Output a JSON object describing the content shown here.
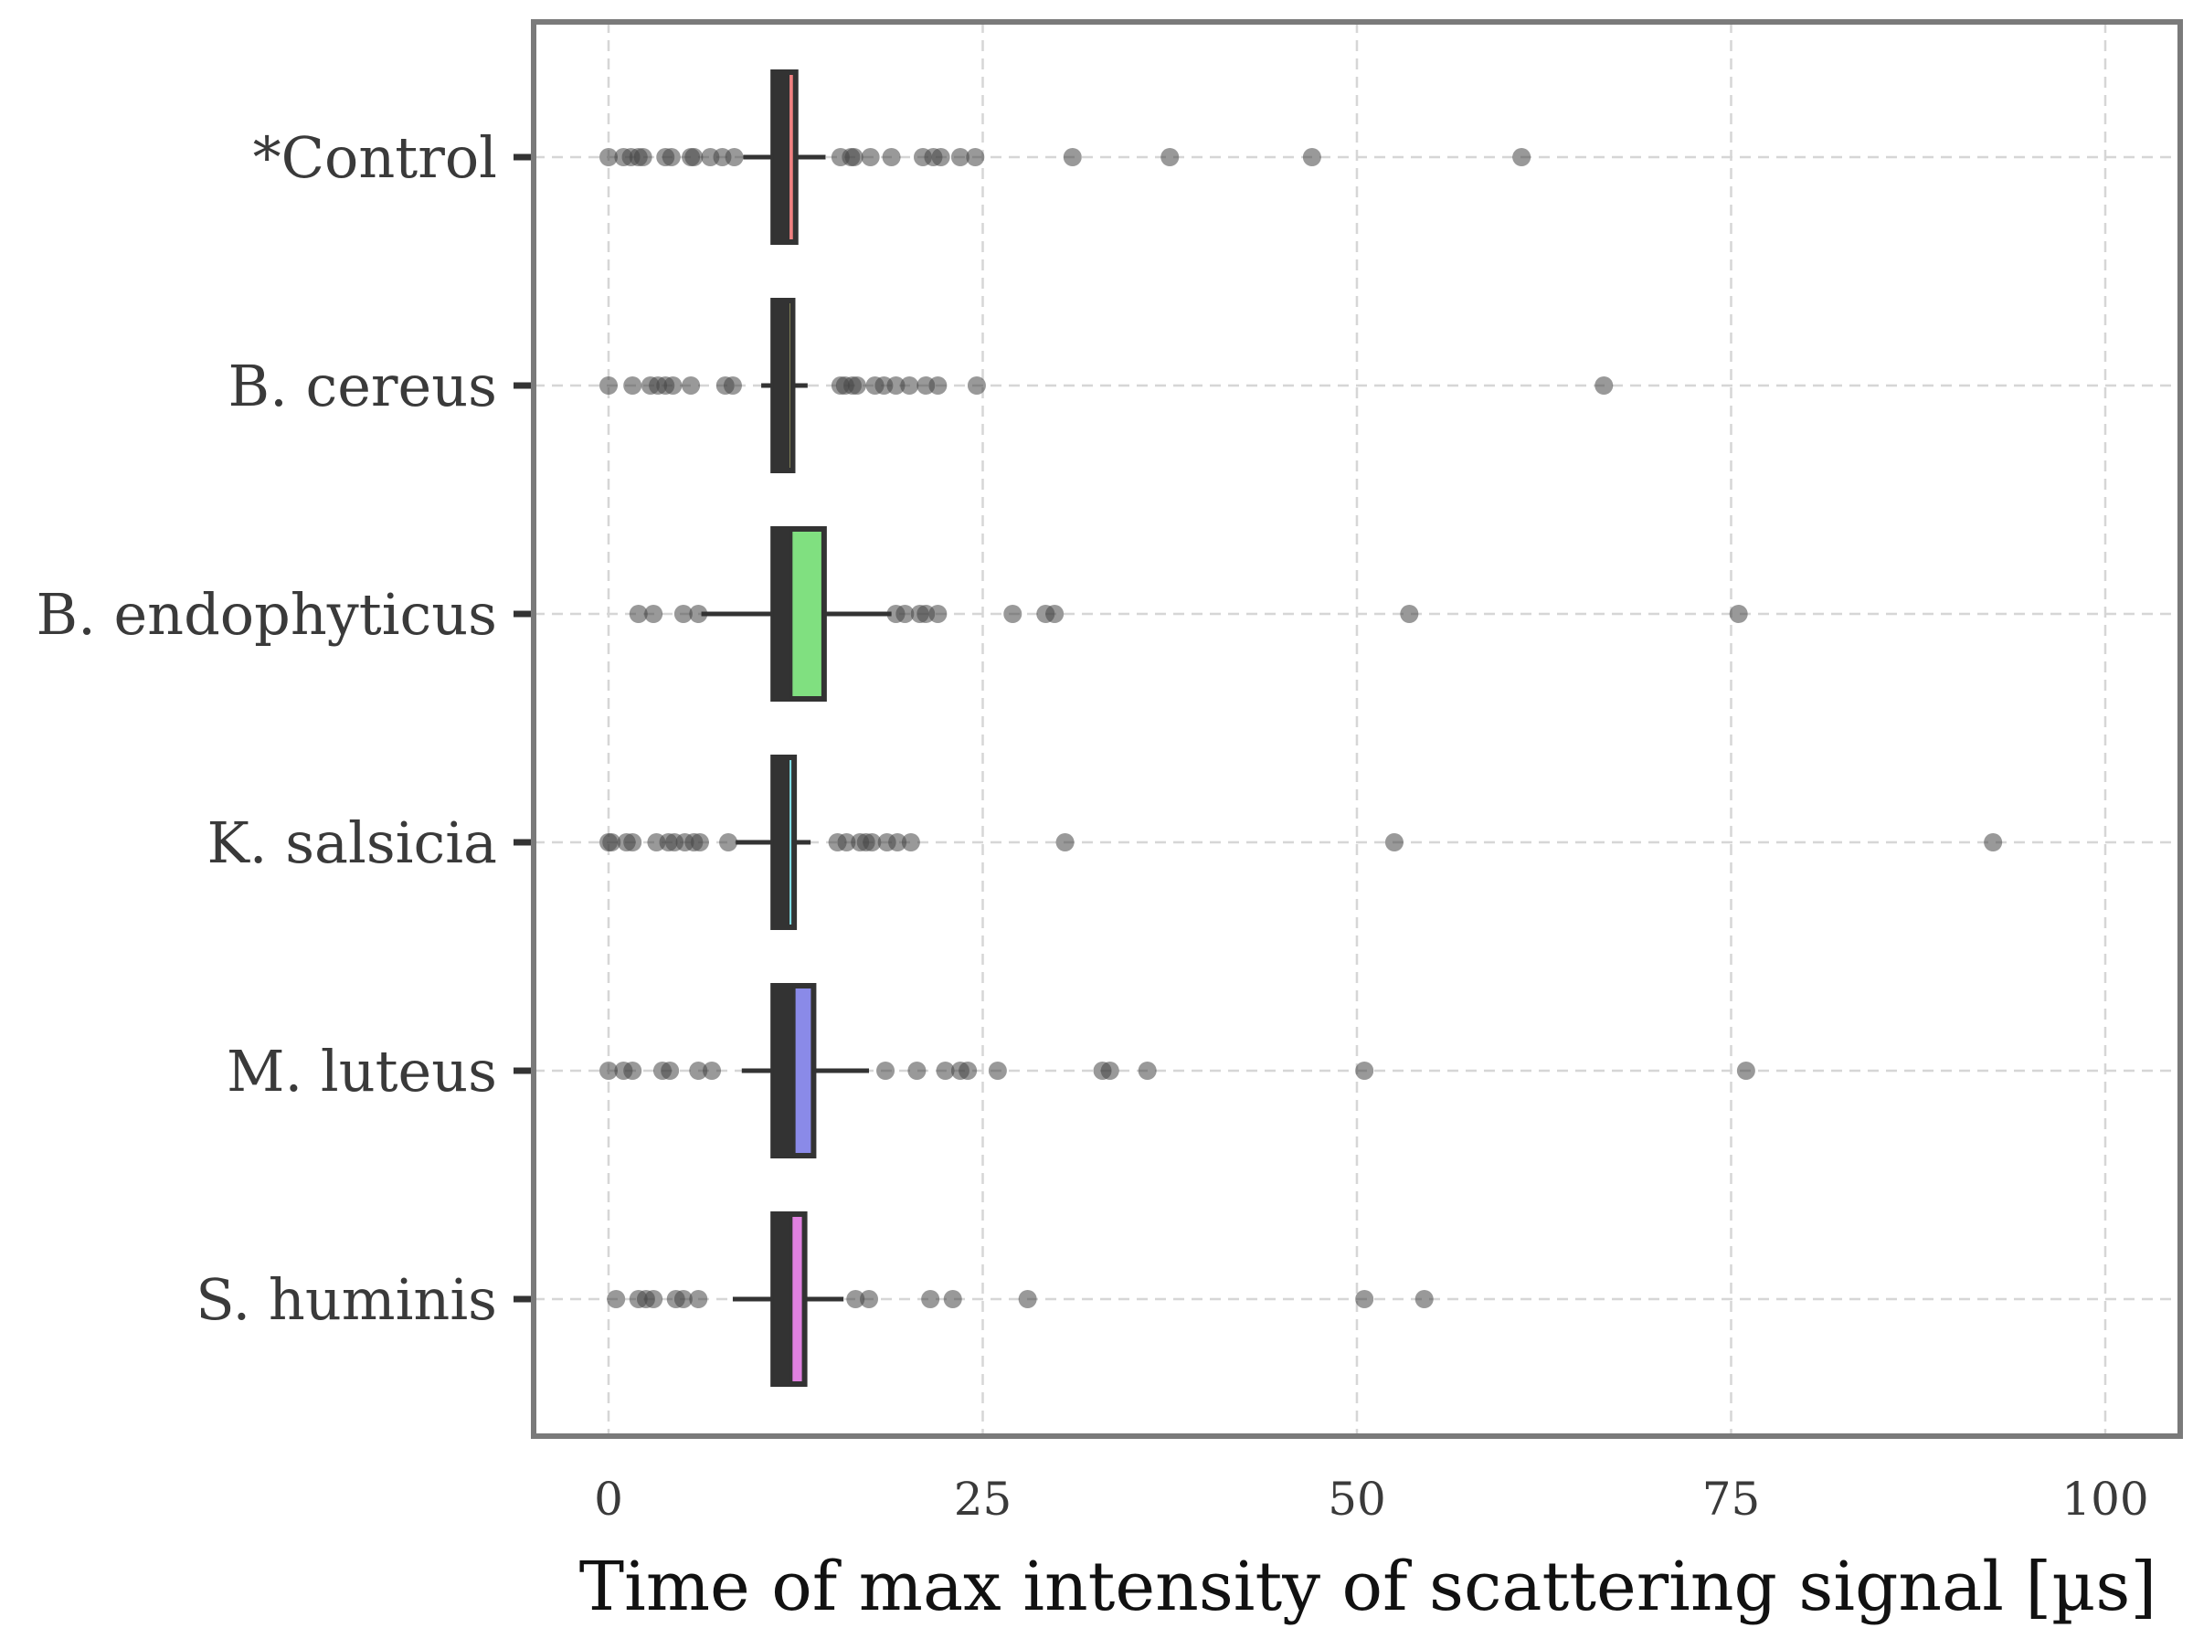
{
  "chart_data": {
    "type": "box",
    "xlabel": "Time of max intensity of scattering signal [µs]",
    "ylabel": "",
    "xlim": [
      -10,
      105
    ],
    "xticks": [
      0,
      25,
      50,
      75,
      100
    ],
    "xtick_labels": [
      "0",
      "25",
      "50",
      "75",
      "100"
    ],
    "grid": true,
    "orientation": "horizontal",
    "categories": [
      "*Control",
      "B. cereus",
      "B. endophyticus",
      "K. salsicia",
      "M. luteus",
      "S. huminis"
    ],
    "series": [
      {
        "category": "*Control",
        "color": "#f08080",
        "q1": 11.0,
        "median": 12.0,
        "q3": 12.5,
        "whisker_low": 9.0,
        "whisker_high": 14.5,
        "points": [
          0,
          1,
          1.5,
          2,
          2.3,
          3.8,
          4.2,
          5.5,
          5.7,
          6.8,
          7.6,
          8.4,
          15.5,
          16.2,
          16.4,
          17.5,
          18.9,
          21,
          21.7,
          22.2,
          23.5,
          24.5,
          31,
          37.5,
          47,
          61
        ]
      },
      {
        "category": "B. cereus",
        "color": "#f0f08a",
        "q1": 11.0,
        "median": 12.0,
        "q3": 12.3,
        "whisker_low": 10.2,
        "whisker_high": 13.3,
        "points": [
          0,
          1.6,
          2.8,
          3.3,
          3.8,
          4.3,
          5.5,
          7.8,
          8.3,
          15.5,
          15.8,
          16.3,
          16.6,
          17.8,
          18.4,
          19.2,
          20.1,
          21.2,
          22,
          24.6,
          66.5
        ]
      },
      {
        "category": "B. endophyticus",
        "color": "#80e080",
        "q1": 11.0,
        "median": 12.2,
        "q3": 14.4,
        "whisker_low": 6.2,
        "whisker_high": 18.9,
        "points": [
          2,
          3,
          5,
          6,
          19.2,
          19.8,
          20.8,
          21.2,
          22,
          27,
          29.2,
          29.8,
          53.5,
          75.5
        ]
      },
      {
        "category": "K. salsicia",
        "color": "#80e0e8",
        "q1": 11.0,
        "median": 12.0,
        "q3": 12.4,
        "whisker_low": 8.5,
        "whisker_high": 13.5,
        "points": [
          0,
          0.2,
          1.2,
          1.6,
          3.2,
          4,
          4.4,
          5.1,
          5.7,
          6.1,
          8,
          15.3,
          15.9,
          16.8,
          17.2,
          17.6,
          18.6,
          19.3,
          20.2,
          30.5,
          52.5,
          92.5
        ]
      },
      {
        "category": "M. luteus",
        "color": "#8a8ae8",
        "q1": 11.0,
        "median": 12.4,
        "q3": 13.7,
        "whisker_low": 8.9,
        "whisker_high": 17.4,
        "points": [
          0,
          1,
          1.6,
          3.6,
          4.1,
          6,
          6.9,
          18.5,
          20.6,
          22.5,
          23.5,
          24,
          26,
          33,
          33.5,
          36,
          50.5,
          76
        ]
      },
      {
        "category": "S. huminis",
        "color": "#e080e0",
        "q1": 11.0,
        "median": 12.2,
        "q3": 13.1,
        "whisker_low": 8.3,
        "whisker_high": 15.7,
        "points": [
          0.5,
          2,
          2.5,
          3,
          4.5,
          5,
          6,
          16.5,
          17.4,
          21.5,
          23,
          28,
          50.5,
          54.5
        ]
      }
    ]
  }
}
